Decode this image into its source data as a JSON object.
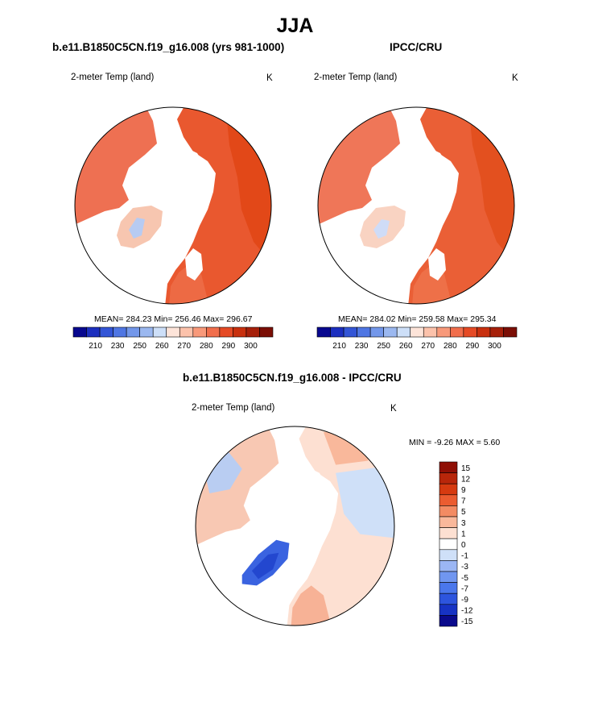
{
  "figure": {
    "title": "JJA"
  },
  "palettes": {
    "absolute": [
      "#08088f",
      "#1c2fbf",
      "#3355d6",
      "#4f76e3",
      "#7397ea",
      "#9bb8f0",
      "#cddff8",
      "#fde4d9",
      "#fcc2ab",
      "#f8997a",
      "#f16e4c",
      "#e54a25",
      "#c8300e",
      "#a6200a",
      "#7b0e05"
    ],
    "difference": [
      "#0a0a8c",
      "#1733c4",
      "#2d55de",
      "#4a77ec",
      "#7096f0",
      "#9bb6f4",
      "#cfe0f8",
      "#ffffff",
      "#fde0d2",
      "#f9b89b",
      "#f38b63",
      "#eb5c30",
      "#d63a10",
      "#b8260a",
      "#8f0f05"
    ]
  },
  "panels": [
    {
      "id": "model",
      "title": "b.e11.B1850C5CN.f19_g16.008 (yrs 981-1000)",
      "variable": "2-meter Temp (land)",
      "units": "K",
      "stats": "MEAN= 284.23  Min= 256.46  Max= 296.67",
      "colorbar_ticks": [
        "210",
        "230",
        "250",
        "260",
        "270",
        "280",
        "290",
        "300"
      ]
    },
    {
      "id": "obs",
      "title": "IPCC/CRU",
      "variable": "2-meter Temp (land)",
      "units": "K",
      "stats": "MEAN= 284.02  Min= 259.58  Max= 295.34",
      "colorbar_ticks": [
        "210",
        "230",
        "250",
        "260",
        "270",
        "280",
        "290",
        "300"
      ]
    },
    {
      "id": "diff",
      "title": "b.e11.B1850C5CN.f19_g16.008 - IPCC/CRU",
      "variable": "2-meter Temp (land)",
      "units": "K",
      "stats": "MIN =  -9.26 MAX =   5.60",
      "colorbar_ticks": [
        "15",
        "12",
        "9",
        "7",
        "5",
        "3",
        "1",
        "0",
        "-1",
        "-3",
        "-5",
        "-7",
        "-9",
        "-12",
        "-15"
      ]
    }
  ],
  "chart_data": [
    {
      "type": "heatmap",
      "title": "b.e11.B1850C5CN.f19_g16.008 (yrs 981-1000)",
      "variable": "2-meter Temp (land)",
      "units": "K",
      "mean": 284.23,
      "min": 256.46,
      "max": 296.67,
      "levels": [
        210,
        230,
        250,
        260,
        270,
        280,
        290,
        300
      ]
    },
    {
      "type": "heatmap",
      "title": "IPCC/CRU",
      "variable": "2-meter Temp (land)",
      "units": "K",
      "mean": 284.02,
      "min": 259.58,
      "max": 295.34,
      "levels": [
        210,
        230,
        250,
        260,
        270,
        280,
        290,
        300
      ]
    },
    {
      "type": "heatmap",
      "title": "b.e11.B1850C5CN.f19_g16.008 - IPCC/CRU",
      "variable": "2-meter Temp (land)",
      "units": "K",
      "min": -9.26,
      "max": 5.6,
      "levels": [
        -15,
        -12,
        -9,
        -7,
        -5,
        -3,
        -1,
        0,
        1,
        3,
        5,
        7,
        9,
        12,
        15
      ]
    }
  ]
}
